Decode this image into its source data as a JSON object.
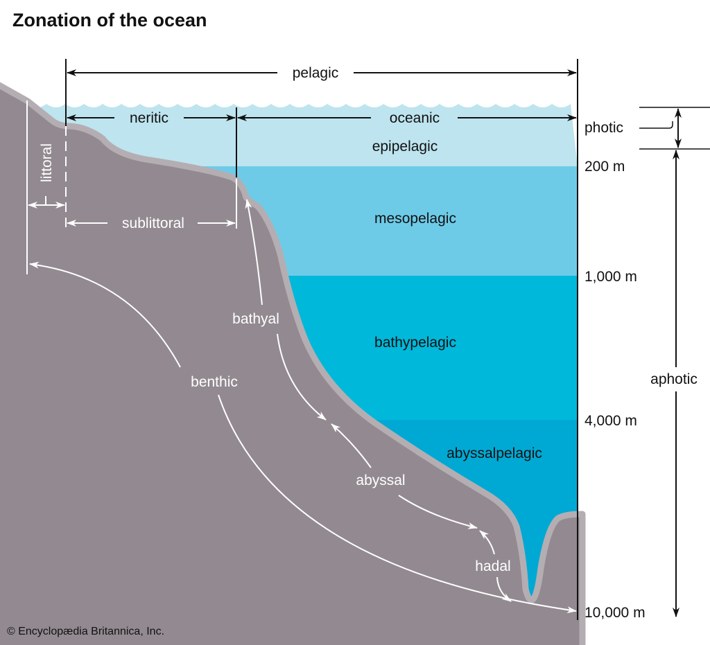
{
  "title": "Zonation of the ocean",
  "credit": "© Encyclopædia Britannica, Inc.",
  "colors": {
    "epipelagic": "#bee4ef",
    "mesopelagic": "#6dcbe8",
    "bathypelagic": "#00b8da",
    "abyssalpelagic": "#00a9d4",
    "seafloor": "#928a90",
    "seafloor_edge": "#b4aeb3"
  },
  "horizontal_zones": {
    "pelagic": "pelagic",
    "neritic": "neritic",
    "oceanic": "oceanic",
    "littoral": "littoral",
    "sublittoral": "sublittoral"
  },
  "water_layers": [
    "epipelagic",
    "mesopelagic",
    "bathypelagic",
    "abyssalpelagic"
  ],
  "benthic_zones": {
    "benthic": "benthic",
    "bathyal": "bathyal",
    "abyssal": "abyssal",
    "hadal": "hadal"
  },
  "depths": [
    "200 m",
    "1,000 m",
    "4,000 m",
    "10,000 m"
  ],
  "light_zones": {
    "photic": "photic",
    "aphotic": "aphotic"
  }
}
